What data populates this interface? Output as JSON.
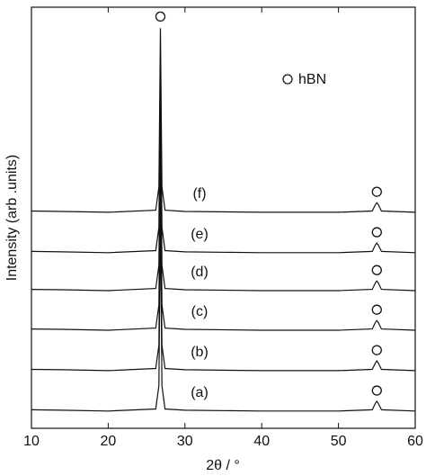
{
  "chart_data": {
    "type": "line",
    "x_label": "2θ / °",
    "y_label": "Intensity (arb .units)",
    "xlim": [
      10,
      60
    ],
    "xticks": [
      10,
      20,
      30,
      40,
      50,
      60
    ],
    "ylim": [
      0,
      100
    ],
    "legend": "hBN",
    "color": "#111111",
    "x": [
      10,
      14,
      20,
      26.2,
      26.6,
      26.8,
      27.0,
      27.4,
      30,
      40,
      50,
      54.4,
      54.8,
      55.0,
      55.2,
      55.6,
      60
    ],
    "series": [
      {
        "name": "(a)",
        "values": [
          4.4,
          4.3,
          4.1,
          4.6,
          10.1,
          50,
          10.1,
          4.6,
          4.3,
          4.1,
          4.1,
          4.4,
          5.9,
          6.4,
          5.9,
          4.4,
          4.1
        ]
      },
      {
        "name": "(b)",
        "values": [
          14,
          13.9,
          13.7,
          14.2,
          19.7,
          60,
          19.7,
          14.2,
          13.9,
          13.7,
          13.7,
          14,
          15.5,
          16,
          15.5,
          14,
          13.7
        ]
      },
      {
        "name": "(c)",
        "values": [
          23.6,
          23.5,
          23.3,
          23.8,
          29.3,
          70,
          29.3,
          23.8,
          23.5,
          23.3,
          23.3,
          23.6,
          25.1,
          25.6,
          25.1,
          23.6,
          23.3
        ]
      },
      {
        "name": "(d)",
        "values": [
          33,
          32.9,
          32.7,
          33.2,
          38.7,
          80,
          38.7,
          33.2,
          32.9,
          32.7,
          32.7,
          33,
          34.5,
          35,
          34.5,
          33,
          32.7
        ]
      },
      {
        "name": "(e)",
        "values": [
          42,
          41.9,
          41.7,
          42.2,
          47.7,
          88,
          47.7,
          42.2,
          41.9,
          41.7,
          41.7,
          42,
          43.5,
          44,
          43.5,
          42,
          41.7
        ]
      },
      {
        "name": "(f)",
        "values": [
          51.6,
          51.5,
          51.3,
          51.8,
          57.3,
          95,
          57.3,
          51.8,
          51.5,
          51.3,
          51.3,
          51.6,
          53.1,
          53.6,
          53.1,
          51.6,
          51.3
        ]
      }
    ]
  }
}
